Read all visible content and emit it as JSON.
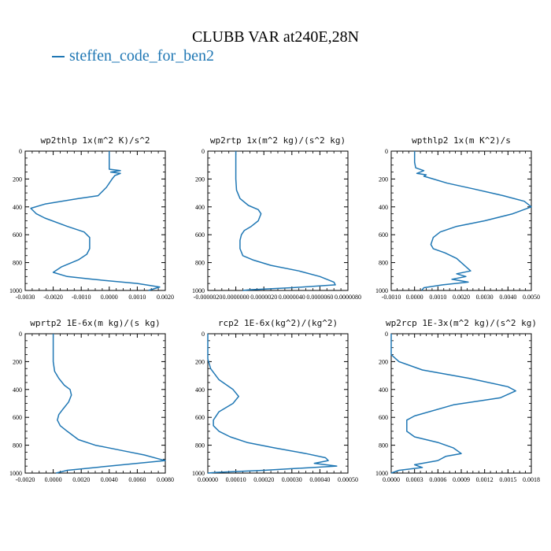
{
  "title": "CLUBB VAR at240E,28N",
  "legend_label": "steffen_code_for_ben2",
  "line_color": "#1f77b4",
  "chart_data": [
    {
      "type": "line",
      "title": "wp2thlp   1x(m^2 K)/s^2",
      "xlim": [
        -0.003,
        0.002
      ],
      "xticks": [
        "-0.0030",
        "-0.0020",
        "-0.0010",
        "0.0000",
        "0.0010",
        "0.0020"
      ],
      "ylim": [
        1000,
        0
      ],
      "yticks": [
        "0",
        "200",
        "400",
        "600",
        "800",
        "1000"
      ],
      "series": [
        {
          "x": [
            0,
            0,
            0.0004,
            5e-05,
            0.0004,
            0.0002,
            0.0001,
            -0.0001,
            -0.0004,
            -0.0011,
            -0.0023,
            -0.0028,
            -0.0026,
            -0.0023,
            -0.0015,
            -0.0009,
            -0.0007,
            -0.0007,
            -0.0007,
            -0.0008,
            -0.0011,
            -0.0017,
            -0.002,
            -0.0015,
            -0.0006,
            0.001,
            0.0018,
            0.0014
          ],
          "y": [
            0,
            130,
            140,
            150,
            160,
            175,
            200,
            260,
            320,
            340,
            380,
            410,
            450,
            480,
            540,
            580,
            620,
            650,
            700,
            740,
            780,
            830,
            870,
            900,
            920,
            950,
            975,
            1000
          ]
        }
      ]
    },
    {
      "type": "line",
      "title": "wp2rtp   1x(m^2 kg)/(s^2 kg)",
      "xlim": [
        -2e-06,
        8e-06
      ],
      "xticks": [
        "-0.0000020",
        "0.0000000",
        "0.0000020",
        "0.0000040",
        "0.0000060",
        "0.0000080"
      ],
      "ylim": [
        1000,
        0
      ],
      "yticks": [
        "0",
        "200",
        "400",
        "600",
        "800",
        "1000"
      ],
      "series": [
        {
          "x": [
            0,
            0,
            5e-08,
            3e-07,
            9e-07,
            1.6e-06,
            1.8e-06,
            1.6e-06,
            1.1e-06,
            6e-07,
            4e-07,
            3e-07,
            3e-07,
            5e-07,
            1.2e-06,
            2.5e-06,
            4.5e-06,
            6e-06,
            7e-06,
            7.1e-06,
            4e-06,
            1e-06,
            5e-07
          ],
          "y": [
            0,
            200,
            280,
            340,
            390,
            420,
            450,
            500,
            540,
            570,
            600,
            640,
            700,
            750,
            780,
            820,
            860,
            900,
            940,
            960,
            980,
            995,
            1000
          ]
        }
      ]
    },
    {
      "type": "line",
      "title": "wpthlp2   1x(m K^2)/s",
      "xlim": [
        -0.001,
        0.005
      ],
      "xticks": [
        "-0.0010",
        "0.0000",
        "0.0010",
        "0.0020",
        "0.0030",
        "0.0040",
        "0.0050"
      ],
      "ylim": [
        1000,
        0
      ],
      "yticks": [
        "0",
        "200",
        "400",
        "600",
        "800",
        "1000"
      ],
      "series": [
        {
          "x": [
            0,
            0,
            5e-05,
            0.0004,
            0.0001,
            0.0005,
            0.0004,
            0.0008,
            0.0014,
            0.0025,
            0.0038,
            0.0047,
            0.005,
            0.0042,
            0.003,
            0.0018,
            0.0011,
            0.0008,
            0.0007,
            0.0008,
            0.0013,
            0.0018,
            0.002,
            0.0024,
            0.0018,
            0.0022,
            0.0016,
            0.0023,
            0.0012,
            0.0004,
            0.0003
          ],
          "y": [
            0,
            80,
            120,
            140,
            160,
            170,
            180,
            200,
            230,
            270,
            320,
            360,
            400,
            450,
            500,
            540,
            580,
            620,
            670,
            700,
            730,
            770,
            800,
            860,
            880,
            900,
            920,
            940,
            960,
            980,
            1000
          ]
        }
      ]
    },
    {
      "type": "line",
      "title": "wprtp2   1E-6x(m kg)/(s kg)",
      "xlim": [
        -0.002,
        0.008
      ],
      "xticks": [
        "-0.0020",
        "0.0000",
        "0.0020",
        "0.0040",
        "0.0060",
        "0.0080"
      ],
      "ylim": [
        1000,
        0
      ],
      "yticks": [
        "0",
        "200",
        "400",
        "600",
        "800",
        "1000"
      ],
      "series": [
        {
          "x": [
            0,
            0,
            0.0001,
            0.0004,
            0.0008,
            0.0012,
            0.0013,
            0.0011,
            0.0007,
            0.0004,
            0.0003,
            0.0005,
            0.001,
            0.0018,
            0.003,
            0.005,
            0.0065,
            0.0076,
            0.008,
            0.004,
            0.001,
            0.0002
          ],
          "y": [
            0,
            200,
            270,
            320,
            370,
            400,
            440,
            490,
            540,
            580,
            620,
            660,
            700,
            760,
            800,
            840,
            870,
            900,
            910,
            950,
            980,
            1000
          ]
        }
      ]
    },
    {
      "type": "line",
      "title": "rcp2   1E-6x(kg^2)/(kg^2)",
      "xlim": [
        0,
        0.0005
      ],
      "xticks": [
        "0.00000",
        "0.00010",
        "0.00020",
        "0.00030",
        "0.00040",
        "0.00050"
      ],
      "ylim": [
        1000,
        0
      ],
      "yticks": [
        "0",
        "200",
        "400",
        "600",
        "800",
        "1000"
      ],
      "series": [
        {
          "x": [
            0,
            0,
            1e-05,
            4e-05,
            9e-05,
            0.00011,
            9e-05,
            4e-05,
            2e-05,
            2e-05,
            4e-05,
            8e-05,
            0.00014,
            0.00024,
            0.00035,
            0.00042,
            0.00043,
            0.00038,
            0.00046,
            0.0002,
            3e-05,
            0
          ],
          "y": [
            0,
            180,
            250,
            330,
            400,
            450,
            500,
            560,
            620,
            660,
            700,
            740,
            780,
            820,
            860,
            890,
            910,
            930,
            950,
            980,
            995,
            1000
          ]
        }
      ]
    },
    {
      "type": "line",
      "title": "wp2rcp   1E-3x(m^2 kg)/(s^2 kg)",
      "xlim": [
        0,
        0.0018
      ],
      "xticks": [
        "0.0000",
        "0.0003",
        "0.0006",
        "0.0009",
        "0.0012",
        "0.0015",
        "0.0018"
      ],
      "ylim": [
        1000,
        0
      ],
      "yticks": [
        "0",
        "200",
        "400",
        "600",
        "800",
        "1000"
      ],
      "series": [
        {
          "x": [
            0,
            0,
            0.0001,
            0.0004,
            0.001,
            0.0015,
            0.0016,
            0.0014,
            0.0008,
            0.0003,
            0.0002,
            0.0002,
            0.0002,
            0.0003,
            0.0006,
            0.0008,
            0.0009,
            0.0007,
            0.0006,
            0.0003,
            0.0004,
            0.0001,
            0
          ],
          "y": [
            0,
            150,
            200,
            260,
            320,
            380,
            410,
            460,
            510,
            590,
            620,
            660,
            700,
            740,
            780,
            820,
            860,
            880,
            910,
            940,
            960,
            980,
            1000
          ]
        }
      ]
    }
  ]
}
